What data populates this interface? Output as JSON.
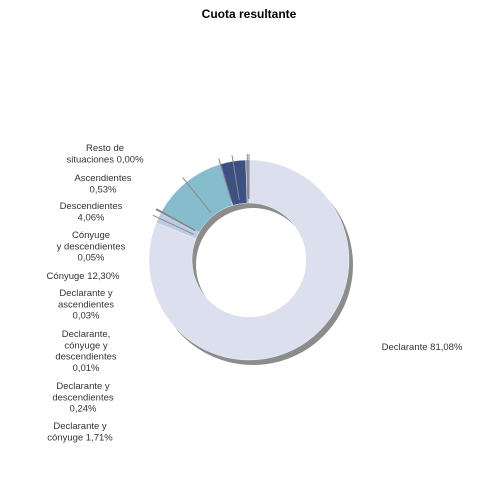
{
  "chart_data": {
    "type": "pie",
    "style": "donut",
    "title": "Cuota resultante",
    "legend": "none",
    "slices": [
      {
        "label": "Declarante 81,08%",
        "name": "Declarante",
        "value": 81.08,
        "color": "#dcdfee"
      },
      {
        "label": "Declarante y cónyuge 1,71%",
        "name": "Declarante y cónyuge",
        "value": 1.71,
        "color": "#bccbe8"
      },
      {
        "label": "Declarante y descendientes 0,24%",
        "name": "Declarante y descendientes",
        "value": 0.24,
        "color": "#6c7f9c"
      },
      {
        "label": "Declarante, cónyuge y descendientes 0,01%",
        "name": "Declarante, cónyuge y descendientes",
        "value": 0.01,
        "color": "#8a8a8a"
      },
      {
        "label": "Declarante y ascendientes 0,03%",
        "name": "Declarante y ascendientes",
        "value": 0.03,
        "color": "#a0a0a0"
      },
      {
        "label": "Cónyuge 12,30%",
        "name": "Cónyuge",
        "value": 12.3,
        "color": "#87bccd"
      },
      {
        "label": "Cónyuge y descendientes 0,05%",
        "name": "Cónyuge y descendientes",
        "value": 0.05,
        "color": "#8c8c8c"
      },
      {
        "label": "Descendientes 4,06%",
        "name": "Descendientes",
        "value": 4.06,
        "color": "#3c5082"
      },
      {
        "label": "Ascendientes 0,53%",
        "name": "Ascendientes",
        "value": 0.53,
        "color": "#8a9cb0"
      },
      {
        "label": "Resto de situaciones 0,00%",
        "name": "Resto de situaciones",
        "value": 0.0,
        "color": "#777777"
      }
    ]
  }
}
